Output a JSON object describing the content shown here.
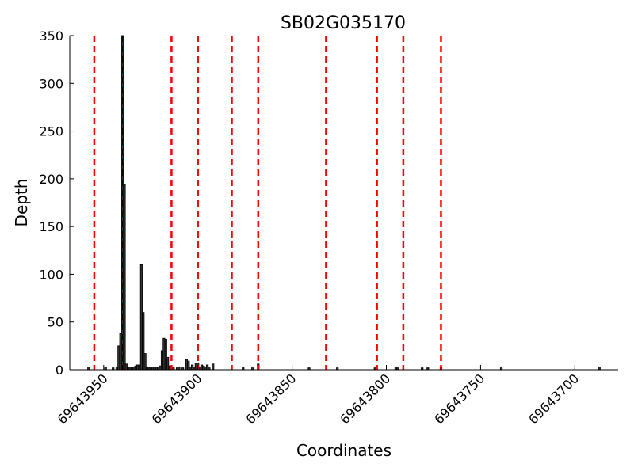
{
  "chart_data": {
    "type": "bar",
    "title": "SB02G035170",
    "xlabel": "Coordinates",
    "ylabel": "Depth",
    "color": "#333333",
    "edge_color": "#000000",
    "x": [
      69643958,
      69643949,
      69643945,
      69643943,
      69643942,
      69643941,
      69643940,
      69643939,
      69643938,
      69643937,
      69643936,
      69643935,
      69643934,
      69643933,
      69643932,
      69643931,
      69643930,
      69643929,
      69643928,
      69643927,
      69643926,
      69643925,
      69643924,
      69643923,
      69643922,
      69643921,
      69643920,
      69643919,
      69643918,
      69643917,
      69643916,
      69643915,
      69643913,
      69643911,
      69643910,
      69643908,
      69643906,
      69643905,
      69643904,
      69643903,
      69643902,
      69643901,
      69643900,
      69643899,
      69643898,
      69643897,
      69643896,
      69643895,
      69643894,
      69643892,
      69643876,
      69643871,
      69643868,
      69643841,
      69643826,
      69643806,
      69643795,
      69643794,
      69643781,
      69643778,
      69643771,
      69643739,
      69643687
    ],
    "values": [
      3,
      3,
      2,
      3,
      25,
      38,
      350,
      194,
      6,
      3,
      2,
      2,
      3,
      4,
      5,
      5,
      110,
      60,
      17,
      3,
      3,
      2,
      2,
      3,
      3,
      3,
      4,
      20,
      33,
      32,
      13,
      4,
      2,
      2,
      3,
      2,
      11,
      9,
      3,
      5,
      3,
      7,
      7,
      3,
      5,
      4,
      3,
      5,
      2,
      6,
      3,
      2,
      6,
      2,
      2,
      2,
      2,
      2,
      2,
      2,
      3,
      2,
      3
    ],
    "vlines": [
      69643955,
      69643940,
      69643914,
      69643900,
      69643882,
      69643868,
      69643832,
      69643805,
      69643791,
      69643771
    ],
    "vline_color": "#ff0000",
    "highlight_line": 69643940,
    "highlight_color": "#000000",
    "xlim": [
      69643968,
      69643677
    ],
    "ylim": [
      0,
      350
    ],
    "xticks": [
      69643950,
      69643900,
      69643850,
      69643800,
      69643750,
      69643700
    ],
    "yticks": [
      0,
      50,
      100,
      150,
      200,
      250,
      300,
      350
    ]
  }
}
